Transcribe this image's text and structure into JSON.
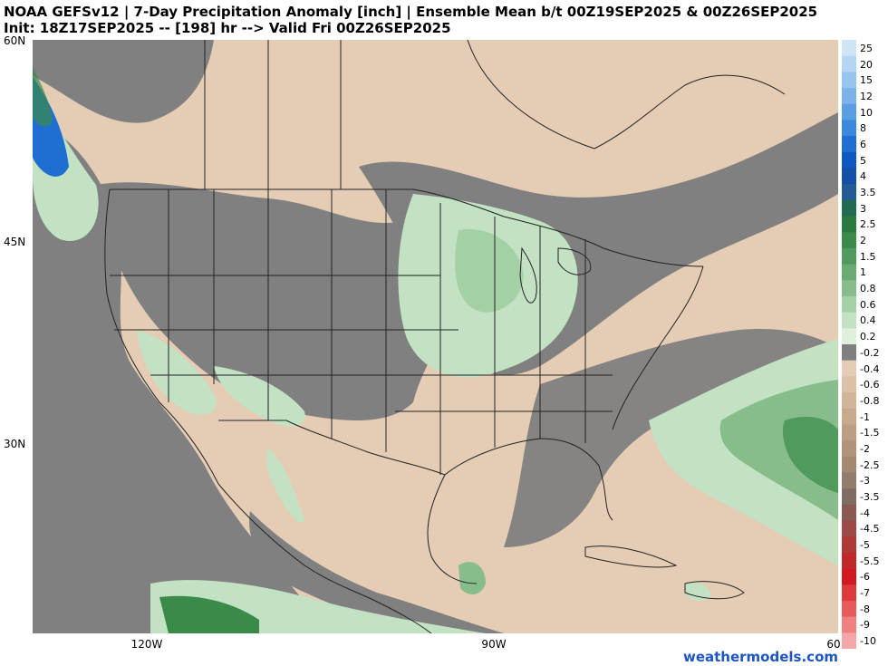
{
  "header": {
    "line1": "NOAA GEFSv12 | 7-Day Precipitation Anomaly [inch] | Ensemble Mean b/t 00Z19SEP2025 & 00Z26SEP2025",
    "line2": "Init: 18Z17SEP2025 -- [198] hr --> Valid Fri 00Z26SEP2025"
  },
  "axes": {
    "lat_ticks": [
      "60N",
      "45N",
      "30N"
    ],
    "lon_ticks": [
      "120W",
      "90W",
      "60"
    ]
  },
  "credit": "weathermodels.com",
  "colorbar": {
    "labels": [
      "25",
      "20",
      "15",
      "12",
      "10",
      "8",
      "6",
      "5",
      "4",
      "3.5",
      "3",
      "2.5",
      "2",
      "1.5",
      "1",
      "0.8",
      "0.6",
      "0.4",
      "0.2",
      "-0.2",
      "-0.4",
      "-0.6",
      "-0.8",
      "-1",
      "-1.5",
      "-2",
      "-2.5",
      "-3",
      "-3.5",
      "-4",
      "-4.5",
      "-5",
      "-5.5",
      "-6",
      "-7",
      "-8",
      "-9",
      "-10"
    ],
    "colors": [
      "#cfe5f7",
      "#b4d6f4",
      "#97c5ef",
      "#79b3ea",
      "#5a9fe4",
      "#3c88dd",
      "#1f6fd3",
      "#0e58c2",
      "#1450a8",
      "#235c94",
      "#1f6b52",
      "#2a7a40",
      "#3a8a4a",
      "#4f9a5c",
      "#69ab72",
      "#86bd8a",
      "#a4d0a6",
      "#c3e2c3",
      "#dff1dc",
      "#7f7f7f",
      "#e5cdb5",
      "#dcc1a6",
      "#d2b599",
      "#c8a98c",
      "#bd9e82",
      "#b19379",
      "#a48870",
      "#927c6b",
      "#7f6d63",
      "#8a5a52",
      "#9b4a45",
      "#ad3a36",
      "#c0282a",
      "#d01a20",
      "#df3a3a",
      "#e75a5a",
      "#ee8080",
      "#f4a7a7"
    ]
  },
  "map": {
    "legend_title": "",
    "regions": [
      {
        "name": "anomaly-negative-neutral",
        "color": "#7f7f7f"
      },
      {
        "name": "anomaly-dry",
        "color": "#e5cdb5"
      },
      {
        "name": "anomaly-wet",
        "color": "#c3e2c3"
      }
    ]
  }
}
